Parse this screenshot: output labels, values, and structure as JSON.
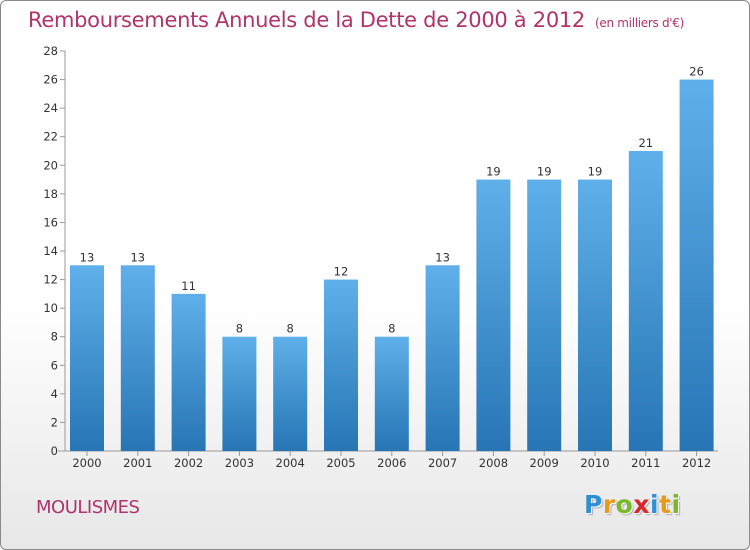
{
  "header": {
    "title": "Remboursements Annuels de la Dette de 2000 à 2012",
    "unit": "(en milliers d'€)"
  },
  "footer": {
    "commune": "MOULISMES",
    "logo": {
      "letters": [
        "P",
        "r",
        "o",
        "x",
        "i",
        "t",
        "i"
      ],
      "colors": [
        "#2f8fd6",
        "#e89a1c",
        "#79b928",
        "#d8262a",
        "#2f8fd6",
        "#e89a1c",
        "#79b928"
      ]
    }
  },
  "colors": {
    "bar_light": "#5fb0ea",
    "bar_dark": "#2775b5",
    "title": "#b0336b"
  },
  "chart_data": {
    "type": "bar",
    "title": "Remboursements Annuels de la Dette de 2000 à 2012",
    "subtitle": "(en milliers d'€)",
    "categories": [
      "2000",
      "2001",
      "2002",
      "2003",
      "2004",
      "2005",
      "2006",
      "2007",
      "2008",
      "2009",
      "2010",
      "2011",
      "2012"
    ],
    "values": [
      13,
      13,
      11,
      8,
      8,
      12,
      8,
      13,
      19,
      19,
      19,
      21,
      26
    ],
    "ylim": [
      0,
      28
    ],
    "yticks": [
      0,
      2,
      4,
      6,
      8,
      10,
      12,
      14,
      16,
      18,
      20,
      22,
      24,
      26,
      28
    ],
    "grid": false,
    "data_labels": true
  }
}
